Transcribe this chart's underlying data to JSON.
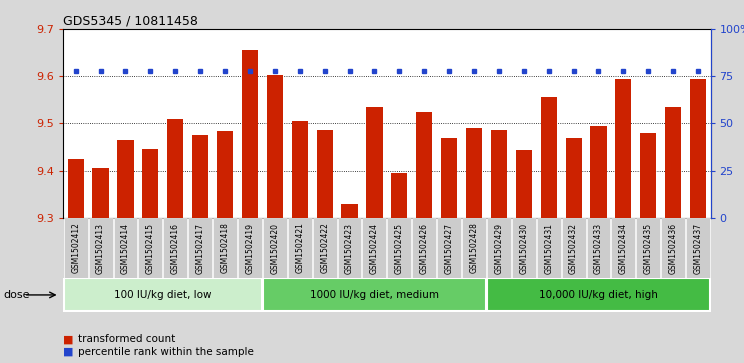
{
  "title": "GDS5345 / 10811458",
  "samples": [
    "GSM1502412",
    "GSM1502413",
    "GSM1502414",
    "GSM1502415",
    "GSM1502416",
    "GSM1502417",
    "GSM1502418",
    "GSM1502419",
    "GSM1502420",
    "GSM1502421",
    "GSM1502422",
    "GSM1502423",
    "GSM1502424",
    "GSM1502425",
    "GSM1502426",
    "GSM1502427",
    "GSM1502428",
    "GSM1502429",
    "GSM1502430",
    "GSM1502431",
    "GSM1502432",
    "GSM1502433",
    "GSM1502434",
    "GSM1502435",
    "GSM1502436",
    "GSM1502437"
  ],
  "bar_values": [
    9.425,
    9.405,
    9.465,
    9.445,
    9.51,
    9.475,
    9.483,
    9.655,
    9.603,
    9.505,
    9.487,
    9.33,
    9.535,
    9.395,
    9.525,
    9.47,
    9.49,
    9.487,
    9.443,
    9.557,
    9.47,
    9.495,
    9.595,
    9.48,
    9.535,
    9.595
  ],
  "percentile_values": [
    78,
    78,
    78,
    78,
    78,
    78,
    78,
    78,
    78,
    78,
    78,
    78,
    78,
    78,
    78,
    78,
    78,
    78,
    78,
    78,
    78,
    78,
    78,
    78,
    78,
    78
  ],
  "ylim_left": [
    9.3,
    9.7
  ],
  "ylim_right": [
    0,
    100
  ],
  "bar_color": "#cc2200",
  "dot_color": "#2244cc",
  "background_color": "#d8d8d8",
  "plot_bg_color": "#ffffff",
  "tick_bg_color": "#cccccc",
  "groups": [
    {
      "label": "100 IU/kg diet, low",
      "start": 0,
      "end": 8,
      "color": "#cceecc"
    },
    {
      "label": "1000 IU/kg diet, medium",
      "start": 8,
      "end": 17,
      "color": "#66cc66"
    },
    {
      "label": "10,000 IU/kg diet, high",
      "start": 17,
      "end": 26,
      "color": "#44bb44"
    }
  ],
  "dose_label": "dose",
  "legend_bar_label": "transformed count",
  "legend_dot_label": "percentile rank within the sample",
  "yticks_left": [
    9.3,
    9.4,
    9.5,
    9.6,
    9.7
  ],
  "yticks_right": [
    0,
    25,
    50,
    75,
    100
  ],
  "grid_values": [
    9.4,
    9.5,
    9.6
  ]
}
